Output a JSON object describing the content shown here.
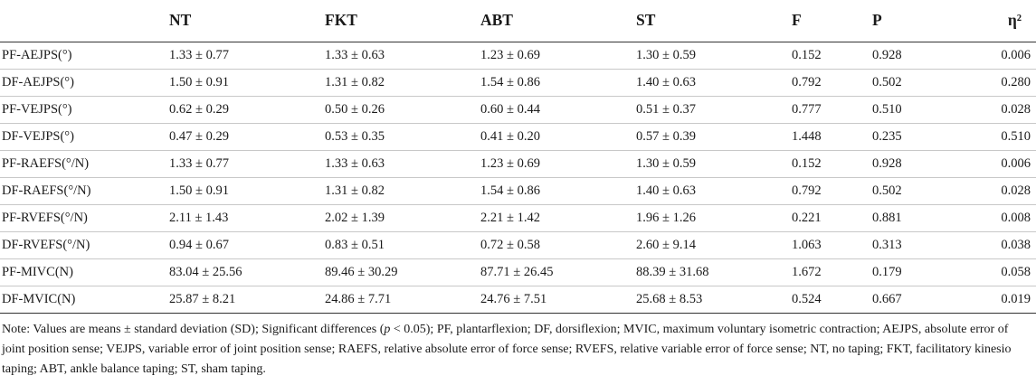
{
  "table": {
    "headers": [
      "",
      "NT",
      "FKT",
      "ABT",
      "ST",
      "F",
      "P",
      "η²"
    ],
    "rows": [
      [
        "PF-AEJPS(°)",
        "1.33 ± 0.77",
        "1.33 ± 0.63",
        "1.23 ± 0.69",
        "1.30 ± 0.59",
        "0.152",
        "0.928",
        "0.006"
      ],
      [
        "DF-AEJPS(°)",
        "1.50 ± 0.91",
        "1.31 ± 0.82",
        "1.54 ± 0.86",
        "1.40 ± 0.63",
        "0.792",
        "0.502",
        "0.280"
      ],
      [
        "PF-VEJPS(°)",
        "0.62 ± 0.29",
        "0.50 ± 0.26",
        "0.60 ± 0.44",
        "0.51 ± 0.37",
        "0.777",
        "0.510",
        "0.028"
      ],
      [
        "DF-VEJPS(°)",
        "0.47 ± 0.29",
        "0.53 ± 0.35",
        "0.41 ± 0.20",
        "0.57 ± 0.39",
        "1.448",
        "0.235",
        "0.510"
      ],
      [
        "PF-RAEFS(°/N)",
        "1.33 ± 0.77",
        "1.33 ± 0.63",
        "1.23 ± 0.69",
        "1.30 ± 0.59",
        "0.152",
        "0.928",
        "0.006"
      ],
      [
        "DF-RAEFS(°/N)",
        "1.50 ± 0.91",
        "1.31 ± 0.82",
        "1.54 ± 0.86",
        "1.40 ± 0.63",
        "0.792",
        "0.502",
        "0.028"
      ],
      [
        "PF-RVEFS(°/N)",
        "2.11 ± 1.43",
        "2.02 ± 1.39",
        "2.21 ± 1.42",
        "1.96 ± 1.26",
        "0.221",
        "0.881",
        "0.008"
      ],
      [
        "DF-RVEFS(°/N)",
        "0.94 ± 0.67",
        "0.83 ± 0.51",
        "0.72 ± 0.58",
        "2.60 ± 9.14",
        "1.063",
        "0.313",
        "0.038"
      ],
      [
        "PF-MIVC(N)",
        "83.04 ± 25.56",
        "89.46 ± 30.29",
        "87.71 ± 26.45",
        "88.39 ± 31.68",
        "1.672",
        "0.179",
        "0.058"
      ],
      [
        "DF-MVIC(N)",
        "25.87 ± 8.21",
        "24.86 ± 7.71",
        "24.76 ± 7.51",
        "25.68 ± 8.53",
        "0.524",
        "0.667",
        "0.019"
      ]
    ]
  },
  "note": {
    "before_italic": "Note: Values are means ± standard deviation (SD); Significant differences (",
    "italic": "p",
    "after_italic": " < 0.05); PF, plantarflexion; DF, dorsiflexion; MVIC, maximum voluntary isometric contraction; AEJPS, absolute error of joint position sense; VEJPS, variable error of joint position sense; RAEFS, relative absolute error of force sense; RVEFS, relative variable error of force sense; NT, no taping; FKT, facilitatory kinesio taping; ABT, ankle balance taping; ST, sham taping."
  }
}
